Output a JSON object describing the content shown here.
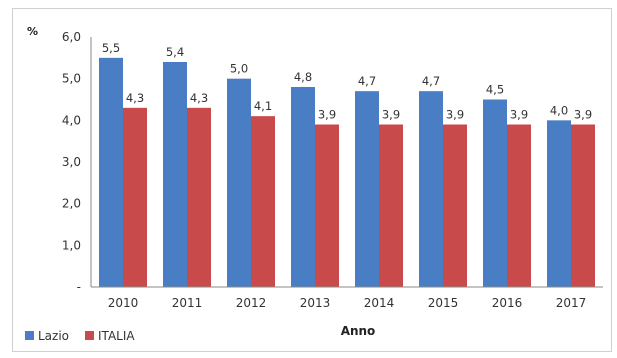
{
  "chart_data": {
    "type": "bar",
    "ylabel": "%",
    "xlabel": "Anno",
    "categories": [
      "2010",
      "2011",
      "2012",
      "2013",
      "2014",
      "2015",
      "2016",
      "2017"
    ],
    "series": [
      {
        "name": "Lazio",
        "color": "#4a7ec4",
        "values": [
          5.5,
          5.4,
          5.0,
          4.8,
          4.7,
          4.7,
          4.5,
          4.0
        ],
        "labels": [
          "5,5",
          "5,4",
          "5,0",
          "4,8",
          "4,7",
          "4,7",
          "4,5",
          "4,0"
        ]
      },
      {
        "name": "ITALIA",
        "color": "#c84a4a",
        "values": [
          4.3,
          4.3,
          4.1,
          3.9,
          3.9,
          3.9,
          3.9,
          3.9
        ],
        "labels": [
          "4,3",
          "4,3",
          "4,1",
          "3,9",
          "3,9",
          "3,9",
          "3,9",
          "3,9"
        ]
      }
    ],
    "ylim": [
      0,
      6
    ],
    "yticks": [
      0,
      1,
      2,
      3,
      4,
      5,
      6
    ],
    "ytick_labels": [
      "-",
      "1,0",
      "2,0",
      "3,0",
      "4,0",
      "5,0",
      "6,0"
    ],
    "grid": false,
    "legend_position": "bottom-left"
  }
}
